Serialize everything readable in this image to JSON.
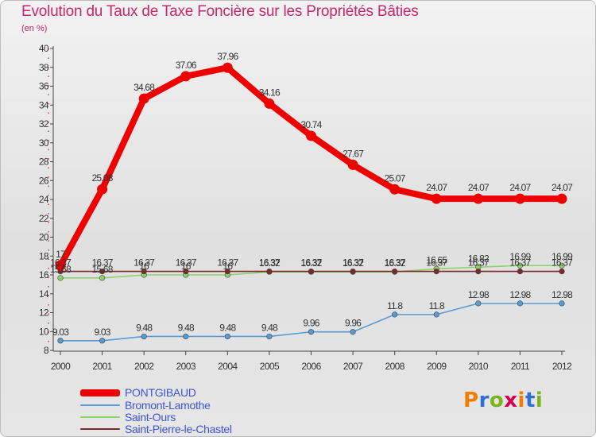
{
  "title": "Evolution du Taux de Taxe Foncière sur les Propriétés Bâties",
  "unit": "(en %)",
  "brand": {
    "text": "Proxiti",
    "colors": [
      "#ef7d00",
      "#2f6fd1",
      "#7ab51d",
      "#d4004f",
      "#ef7d00",
      "#2f6fd1",
      "#7ab51d"
    ]
  },
  "chart_data": {
    "type": "line",
    "title": "Evolution du Taux de Taxe Foncière sur les Propriétés Bâties",
    "xlabel": "",
    "ylabel": "(en %)",
    "x": [
      "2000",
      "2001",
      "2002",
      "2003",
      "2004",
      "2005",
      "2006",
      "2007",
      "2008",
      "2009",
      "2010",
      "2011",
      "2012"
    ],
    "ylim": [
      8,
      40
    ],
    "yticks": [
      "8",
      "10",
      "12",
      "14",
      "16",
      "18",
      "20",
      "22",
      "24",
      "26",
      "28",
      "30",
      "32",
      "34",
      "36",
      "38",
      "40"
    ],
    "grid": false,
    "legend_position": "bottom-left",
    "series": [
      {
        "name": "PONTGIBAUD",
        "color": "#ee0000",
        "values": [
          17.0,
          25.08,
          34.68,
          37.06,
          37.96,
          34.16,
          30.74,
          27.67,
          25.07,
          24.07,
          24.07,
          24.07,
          24.07
        ],
        "labels": [
          "17",
          "25.08",
          "34.68",
          "37.06",
          "37.96",
          "34.16",
          "30.74",
          "27.67",
          "25.07",
          "24.07",
          "24.07",
          "24.07",
          "24.07"
        ]
      },
      {
        "name": "Bromont-Lamothe",
        "color": "#5b9bd5",
        "values": [
          9.03,
          9.03,
          9.48,
          9.48,
          9.48,
          9.48,
          9.96,
          9.96,
          11.8,
          11.8,
          12.98,
          12.98,
          12.98
        ],
        "labels": [
          "9.03",
          "9.03",
          "9.48",
          "9.48",
          "9.48",
          "9.48",
          "9.96",
          "9.96",
          "11.8",
          "11.8",
          "12.98",
          "12.98",
          "12.98"
        ]
      },
      {
        "name": "Saint-Ours",
        "color": "#8cd36a",
        "values": [
          15.68,
          15.68,
          16.0,
          16.0,
          16.0,
          16.32,
          16.32,
          16.32,
          16.32,
          16.65,
          16.82,
          16.99,
          16.99
        ],
        "labels": [
          "15.68",
          "15.68",
          "16",
          "16",
          "16",
          "16.32",
          "16.32",
          "16.32",
          "16.32",
          "16.65",
          "16.82",
          "16.99",
          "16.99"
        ]
      },
      {
        "name": "Saint-Pierre-le-Chastel",
        "color": "#7b2a2a",
        "values": [
          16.37,
          16.37,
          16.37,
          16.37,
          16.37,
          16.37,
          16.37,
          16.37,
          16.37,
          16.37,
          16.37,
          16.37,
          16.37
        ],
        "labels": [
          "16.37",
          "16.37",
          "16.37",
          "16.37",
          "16.37",
          "16.37",
          "16.37",
          "16.37",
          "16.37",
          "16.37",
          "16.37",
          "16.37",
          "16.37"
        ]
      }
    ]
  }
}
